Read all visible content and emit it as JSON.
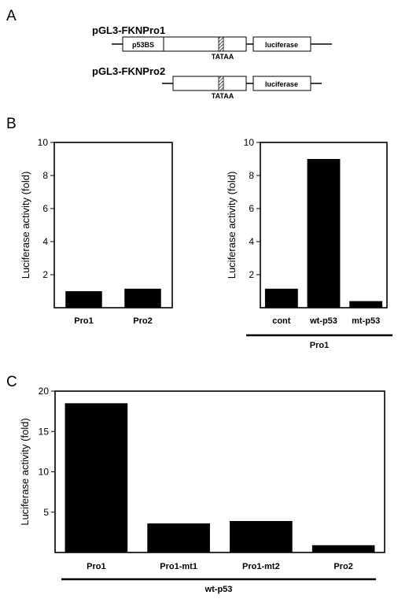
{
  "panels": {
    "a": "A",
    "b": "B",
    "c": "C"
  },
  "constructs": {
    "pro1_name": "pGL3-FKNPro1",
    "pro2_name": "pGL3-FKNPro2",
    "p53bs_label": "p53BS",
    "tataa_label": "TATAA",
    "luciferase_label": "luciferase"
  },
  "chart_data": [
    {
      "type": "bar",
      "ylabel": "Luciferase activity (fold)",
      "ylim": [
        0,
        10
      ],
      "yticks": [
        2,
        4,
        6,
        8,
        10
      ],
      "categories": [
        "Pro1",
        "Pro2"
      ],
      "values": [
        1.0,
        1.15
      ],
      "color": "#000000"
    },
    {
      "type": "bar",
      "ylabel": "Luciferase activity (fold)",
      "ylim": [
        0,
        10
      ],
      "yticks": [
        2,
        4,
        6,
        8,
        10
      ],
      "categories": [
        "cont",
        "wt-p53",
        "mt-p53"
      ],
      "values": [
        1.15,
        9.0,
        0.4
      ],
      "group_label": "Pro1",
      "color": "#000000"
    },
    {
      "type": "bar",
      "ylabel": "Luciferase activity (fold)",
      "ylim": [
        0,
        20
      ],
      "yticks": [
        5,
        10,
        15,
        20
      ],
      "categories": [
        "Pro1",
        "Pro1-mt1",
        "Pro1-mt2",
        "Pro2"
      ],
      "values": [
        18.5,
        3.6,
        3.9,
        0.9
      ],
      "group_label": "wt-p53",
      "color": "#000000"
    }
  ]
}
